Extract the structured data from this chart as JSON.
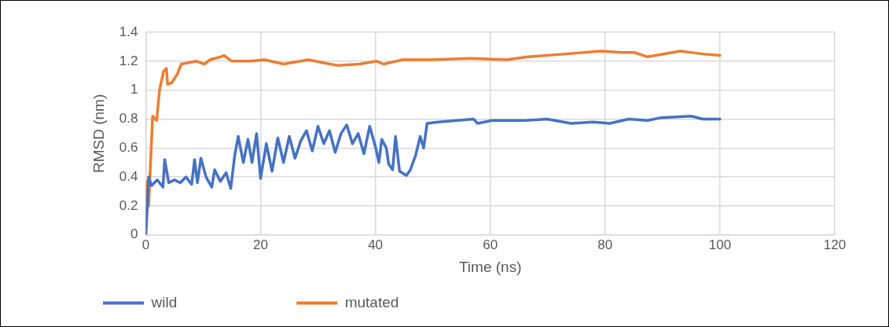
{
  "chart_data": {
    "type": "line",
    "xlabel": "Time (ns)",
    "ylabel": "RMSD (nm)",
    "xlim": [
      0,
      120
    ],
    "xticks": [
      0,
      20,
      40,
      60,
      80,
      100,
      120
    ],
    "ylim": [
      0,
      1.4
    ],
    "yticks": [
      0,
      0.2,
      0.4,
      0.6,
      0.8,
      1,
      1.2,
      1.4
    ],
    "grid": true,
    "legend": "bottom",
    "marker": "none",
    "line_style": "solid",
    "series": [
      {
        "name": "wild",
        "color": "#4472c4",
        "x": [
          0,
          0.3,
          0.5,
          1,
          2,
          3,
          3.3,
          4,
          5,
          6,
          7,
          8,
          8.5,
          9,
          9.6,
          10.5,
          11.5,
          12,
          13,
          14,
          14.8,
          15.5,
          16.1,
          17,
          17.8,
          18.5,
          19.3,
          20,
          21,
          22,
          23,
          24,
          25,
          26,
          27,
          28,
          29,
          30,
          31,
          32,
          33,
          34,
          35,
          36,
          37,
          38,
          39,
          40,
          40.6,
          41.1,
          41.9,
          42.3,
          43,
          43.5,
          44.2,
          45.4,
          46.1,
          47,
          47.8,
          48.4,
          49,
          50.9,
          54.2,
          57.1,
          57.8,
          60.3,
          66,
          69.9,
          74.1,
          77.9,
          80.8,
          84.1,
          87.4,
          89.8,
          95,
          97,
          100
        ],
        "values": [
          0,
          0.21,
          0.4,
          0.34,
          0.38,
          0.33,
          0.52,
          0.36,
          0.38,
          0.36,
          0.4,
          0.35,
          0.52,
          0.36,
          0.53,
          0.4,
          0.33,
          0.45,
          0.37,
          0.43,
          0.32,
          0.55,
          0.68,
          0.5,
          0.66,
          0.5,
          0.7,
          0.39,
          0.63,
          0.44,
          0.67,
          0.5,
          0.68,
          0.53,
          0.65,
          0.72,
          0.58,
          0.75,
          0.63,
          0.72,
          0.57,
          0.7,
          0.76,
          0.63,
          0.7,
          0.56,
          0.75,
          0.61,
          0.5,
          0.66,
          0.6,
          0.49,
          0.45,
          0.68,
          0.44,
          0.41,
          0.45,
          0.55,
          0.68,
          0.6,
          0.77,
          0.78,
          0.79,
          0.8,
          0.77,
          0.79,
          0.79,
          0.8,
          0.77,
          0.78,
          0.77,
          0.8,
          0.79,
          0.81,
          0.82,
          0.8,
          0.8
        ]
      },
      {
        "name": "mutated",
        "color": "#ed7d31",
        "x": [
          0,
          0.24,
          0.5,
          0.7,
          1.2,
          1.9,
          2.4,
          3.1,
          3.6,
          3.8,
          4.5,
          5.5,
          6.2,
          8.8,
          10.2,
          11.2,
          13.1,
          13.6,
          15,
          18.3,
          20.7,
          24,
          28.3,
          32.1,
          33.5,
          37.3,
          40.2,
          41.4,
          44.7,
          49.5,
          56.6,
          62.8,
          66.6,
          73.2,
          79.4,
          82.8,
          85.1,
          87.4,
          93.1,
          97,
          100
        ],
        "values": [
          0,
          0.37,
          0.2,
          0.38,
          0.82,
          0.79,
          1,
          1.13,
          1.15,
          1.04,
          1.05,
          1.11,
          1.18,
          1.2,
          1.18,
          1.21,
          1.23,
          1.24,
          1.2,
          1.2,
          1.21,
          1.18,
          1.21,
          1.18,
          1.17,
          1.18,
          1.2,
          1.18,
          1.21,
          1.21,
          1.22,
          1.21,
          1.23,
          1.25,
          1.27,
          1.26,
          1.26,
          1.23,
          1.27,
          1.25,
          1.24
        ]
      }
    ]
  }
}
